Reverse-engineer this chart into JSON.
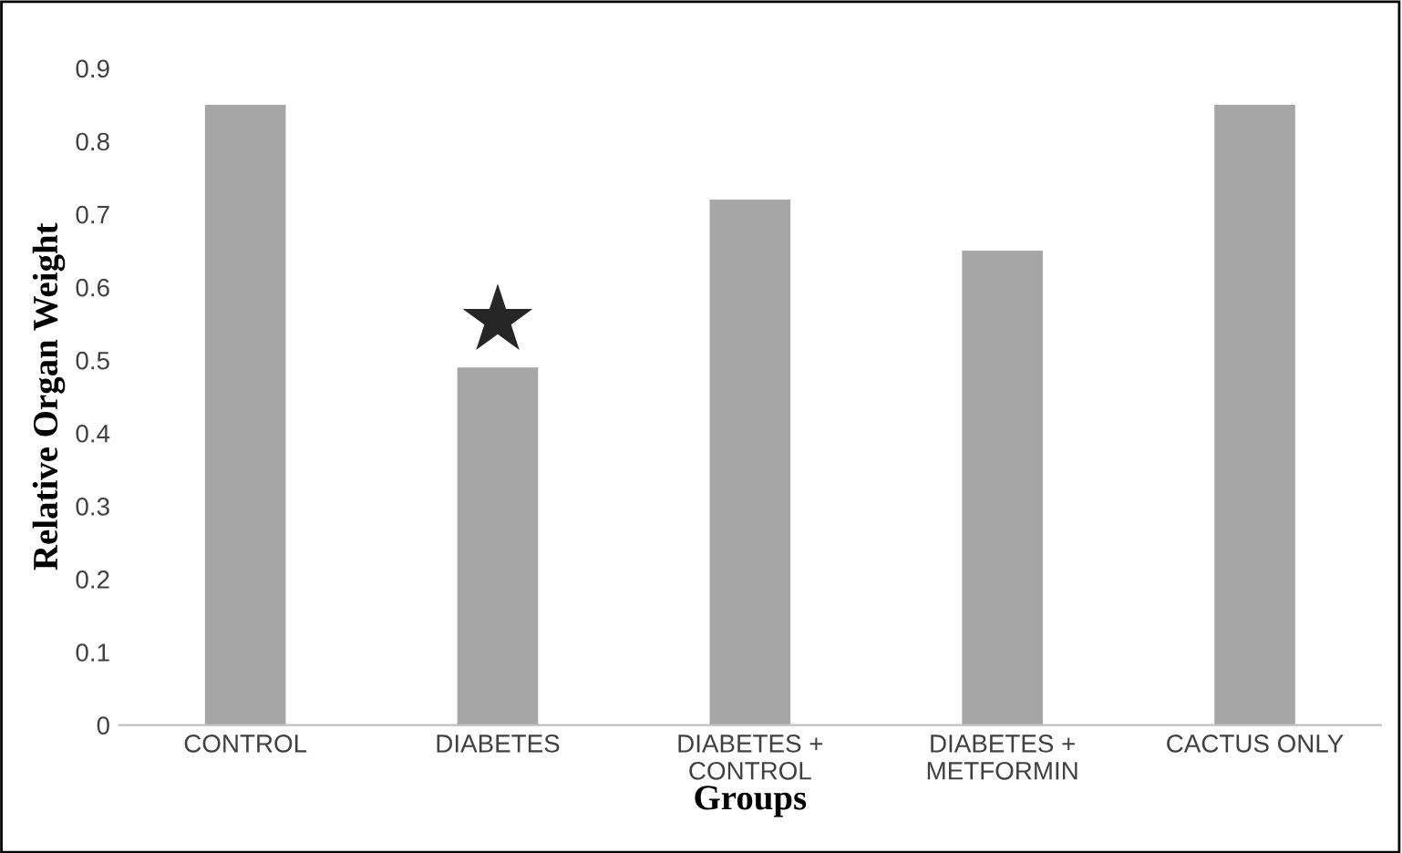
{
  "chart_data": {
    "type": "bar",
    "xlabel": "Groups",
    "ylabel": "Relative Organ Weight",
    "categories": [
      "CONTROL",
      "DIABETES",
      "DIABETES +\nCONTROL",
      "DIABETES +\nMETFORMIN",
      "CACTUS ONLY"
    ],
    "values": [
      0.85,
      0.49,
      0.72,
      0.65,
      0.85
    ],
    "color": "#a6a6a6",
    "ylim": [
      0,
      0.9
    ],
    "yticks": [
      0,
      0.1,
      0.2,
      0.3,
      0.4,
      0.5,
      0.6,
      0.7,
      0.8,
      0.9
    ],
    "grid": false,
    "annotations": [
      "★"
    ]
  }
}
